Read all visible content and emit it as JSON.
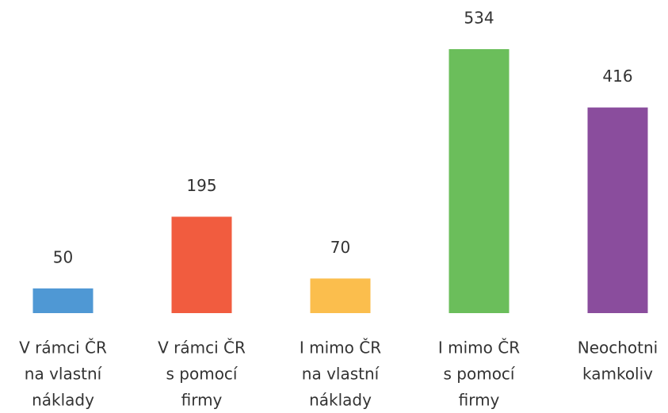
{
  "chart_data": {
    "type": "bar",
    "categories": [
      [
        "V rámci ČR",
        "na vlastní",
        "náklady"
      ],
      [
        "V rámci ČR",
        "s pomocí",
        "firmy"
      ],
      [
        "I mimo ČR",
        "na vlastní",
        "náklady"
      ],
      [
        "I mimo ČR",
        "s pomocí",
        "firmy"
      ],
      [
        "Neochotni",
        "kamkoliv"
      ]
    ],
    "values": [
      50,
      195,
      70,
      534,
      416
    ],
    "colors": [
      "#4f98d4",
      "#f15c3f",
      "#fbbe4d",
      "#6bbe5b",
      "#8a4d9d"
    ]
  }
}
